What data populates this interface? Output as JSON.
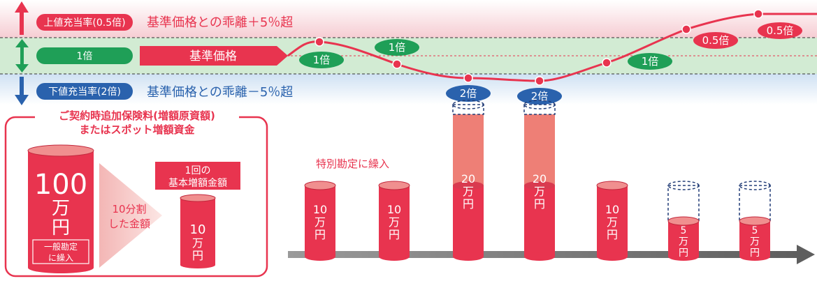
{
  "zones": {
    "upper": {
      "badge": "上値充当率(0.5倍)",
      "text": "基準価格との乖離＋5％超"
    },
    "middle": {
      "badge": "1倍",
      "arrow_label": "基準価格"
    },
    "lower": {
      "badge": "下値充当率(2倍)",
      "text": "基準価格との乖離－5％超"
    }
  },
  "curve_markers": [
    "1倍",
    "1倍",
    "2倍",
    "2倍",
    "1倍",
    "0.5倍",
    "0.5倍"
  ],
  "premium_box": {
    "title_line1": "ご契約時追加保険料(増額原資額)",
    "title_line2": "またはスポット増額資金",
    "big_amount_num": "100",
    "big_amount_unit1": "万",
    "big_amount_unit2": "円",
    "general_account": "一般勘定に繰入",
    "split_line1": "10分割",
    "split_line2": "した金額",
    "per_time_line1": "1回の",
    "per_time_line2": "基本増額金額",
    "per_time_amount": "10",
    "per_time_unit1": "万",
    "per_time_unit2": "円"
  },
  "special_account_label": "特別勘定に繰入",
  "cylinders": [
    {
      "amount": "10",
      "unit1": "万",
      "unit2": "円",
      "value": 10,
      "extra": 0
    },
    {
      "amount": "10",
      "unit1": "万",
      "unit2": "円",
      "value": 10,
      "extra": 0
    },
    {
      "amount": "20",
      "unit1": "万",
      "unit2": "円",
      "value": 20,
      "extra": 10
    },
    {
      "amount": "20",
      "unit1": "万",
      "unit2": "円",
      "value": 20,
      "extra": 10
    },
    {
      "amount": "10",
      "unit1": "万",
      "unit2": "円",
      "value": 10,
      "extra": 0
    },
    {
      "amount": "5",
      "unit1": "万",
      "unit2": "円",
      "value": 5,
      "extra": 0
    },
    {
      "amount": "5",
      "unit1": "万",
      "unit2": "円",
      "value": 5,
      "extra": 0
    }
  ],
  "colors": {
    "red": "#e8344f",
    "salmon": "#ee7f76",
    "green": "#1f9f57",
    "blue": "#2a62ad",
    "navy": "#243f78",
    "upper_band": "#f8d6da",
    "middle_band": "#d2ebd3",
    "lower_band": "#d5e5f4",
    "gray": "#6e6e6e"
  }
}
